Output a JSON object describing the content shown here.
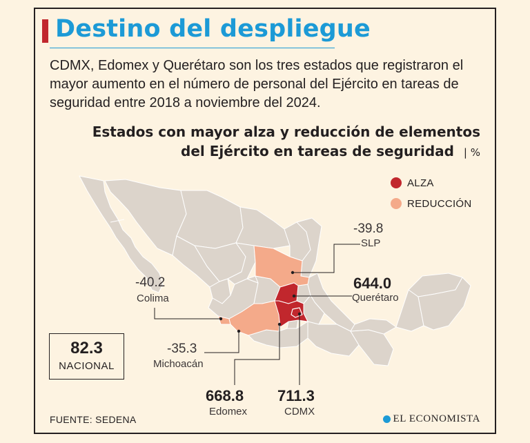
{
  "header": {
    "title": "Destino del despliegue",
    "intro": "CDMX, Edomex y Querétaro son los tres estados que registraron el mayor aumento en el número de personal del Ejército en tareas de seguridad entre 2018 a noviembre del 2024."
  },
  "chart": {
    "title_line1": "Estados con mayor alza y reducción de elementos",
    "title_line2": "del Ejército en tareas de seguridad",
    "unit": "| %"
  },
  "legend": [
    {
      "label": "ALZA",
      "color": "#c1272d"
    },
    {
      "label": "REDUCCIÓN",
      "color": "#f4aa8a"
    }
  ],
  "colors": {
    "map_base": "#dcd4cb",
    "map_border": "#ffffff",
    "alza": "#c1272d",
    "reduccion": "#f4aa8a",
    "title": "#1c9ad6"
  },
  "chart_data": {
    "type": "choropleth",
    "unit": "%",
    "states": [
      {
        "name": "SLP",
        "value": -39.8,
        "category": "REDUCCIÓN"
      },
      {
        "name": "Querétaro",
        "value": 644.0,
        "category": "ALZA"
      },
      {
        "name": "Colima",
        "value": -40.2,
        "category": "REDUCCIÓN"
      },
      {
        "name": "Michoacán",
        "value": -35.3,
        "category": "REDUCCIÓN"
      },
      {
        "name": "Edomex",
        "value": 668.8,
        "category": "ALZA"
      },
      {
        "name": "CDMX",
        "value": 711.3,
        "category": "ALZA"
      }
    ],
    "national": {
      "label": "NACIONAL",
      "value": 82.3
    }
  },
  "labels": {
    "slp": {
      "value": "-39.8",
      "name": "SLP"
    },
    "queretaro": {
      "value": "644.0",
      "name": "Querétaro"
    },
    "colima": {
      "value": "-40.2",
      "name": "Colima"
    },
    "michoacan": {
      "value": "-35.3",
      "name": "Michoacán"
    },
    "edomex": {
      "value": "668.8",
      "name": "Edomex"
    },
    "cdmx": {
      "value": "711.3",
      "name": "CDMX"
    }
  },
  "national": {
    "value": "82.3",
    "label": "NACIONAL"
  },
  "footer": {
    "source": "FUENTE: SEDENA",
    "brand": "EL ECONOMISTA"
  }
}
